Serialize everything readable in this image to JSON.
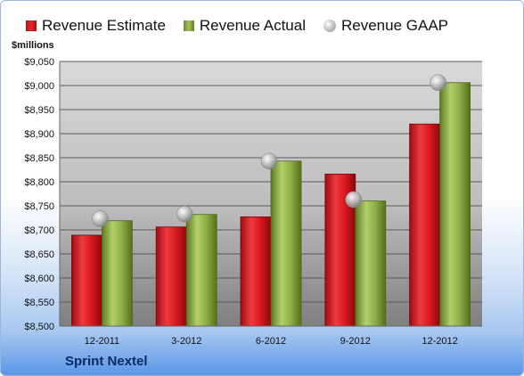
{
  "chart_data": {
    "type": "bar",
    "title": "",
    "company": "Sprint Nextel",
    "ylabel": "$millions",
    "xlabel": "",
    "categories": [
      "12-2011",
      "3-2012",
      "6-2012",
      "9-2012",
      "12-2012"
    ],
    "series": [
      {
        "name": "Revenue Estimate",
        "values": [
          8689,
          8706,
          8727,
          8816,
          8920
        ],
        "color": "#d8191f",
        "kind": "bar"
      },
      {
        "name": "Revenue Actual",
        "values": [
          8719,
          8732,
          8843,
          8760,
          9006
        ],
        "color": "#8fae46",
        "kind": "bar"
      },
      {
        "name": "Revenue GAAP",
        "values": [
          8723,
          8733,
          8843,
          8763,
          9006
        ],
        "color": "#b5b5b5",
        "kind": "marker"
      }
    ],
    "ylim": [
      8500,
      9050
    ],
    "yticks": [
      "$8,500",
      "$8,550",
      "$8,600",
      "$8,650",
      "$8,700",
      "$8,750",
      "$8,800",
      "$8,850",
      "$8,900",
      "$8,950",
      "$9,000",
      "$9,050"
    ],
    "ytick_values": [
      8500,
      8550,
      8600,
      8650,
      8700,
      8750,
      8800,
      8850,
      8900,
      8950,
      9000,
      9050
    ],
    "grid": true,
    "legend_position": "top"
  }
}
